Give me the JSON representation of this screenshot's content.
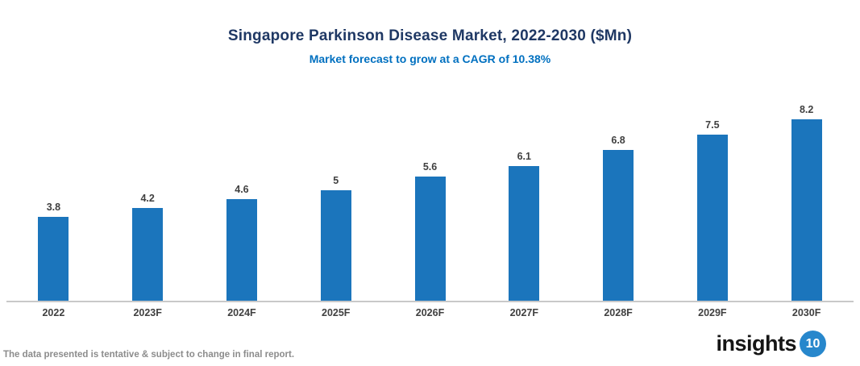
{
  "header": {
    "title": "Singapore Parkinson Disease Market, 2022-2030 ($Mn)",
    "subtitle": "Market forecast to grow at a CAGR of 10.38%"
  },
  "chart_data": {
    "type": "bar",
    "categories": [
      "2022",
      "2023F",
      "2024F",
      "2025F",
      "2026F",
      "2027F",
      "2028F",
      "2029F",
      "2030F"
    ],
    "values": [
      3.8,
      4.2,
      4.6,
      5,
      5.6,
      6.1,
      6.8,
      7.5,
      8.2
    ],
    "value_labels": [
      "3.8",
      "4.2",
      "4.6",
      "5",
      "5.6",
      "6.1",
      "6.8",
      "7.5",
      "8.2"
    ],
    "title": "Singapore Parkinson Disease Market, 2022-2030 ($Mn)",
    "xlabel": "",
    "ylabel": "",
    "ylim": [
      0,
      9
    ],
    "grid": false,
    "legend": "none",
    "bar_color": "#1b75bc",
    "axis_line_color": "#c9c9c9",
    "label_color": "#404040"
  },
  "footer": {
    "note": "The data presented is tentative & subject to change in final report.",
    "logo_text": "insights",
    "logo_badge": "10",
    "logo_badge_color": "#2787cc"
  }
}
